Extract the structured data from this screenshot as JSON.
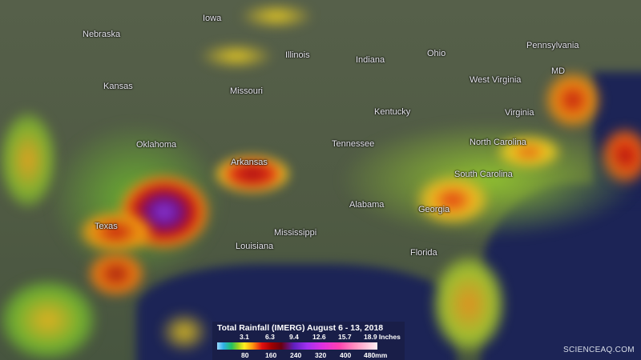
{
  "map": {
    "state_labels": [
      "Nebraska",
      "Iowa",
      "Illinois",
      "Indiana",
      "Ohio",
      "Pennsylvania",
      "Kansas",
      "Missouri",
      "West Virginia",
      "MD",
      "Kentucky",
      "Virginia",
      "Oklahoma",
      "Tennessee",
      "North Carolina",
      "Arkansas",
      "South Carolina",
      "Alabama",
      "Georgia",
      "Mississippi",
      "Texas",
      "Louisiana",
      "Florida"
    ]
  },
  "legend": {
    "title": "Total Rainfall (IMERG) August 6 - 13, 2018",
    "inch_ticks": [
      "3.1",
      "6.3",
      "9.4",
      "12.6",
      "15.7",
      "18.9 Inches"
    ],
    "mm_ticks": [
      "80",
      "160",
      "240",
      "320",
      "400",
      "480mm"
    ],
    "colors": [
      "#9ad8ff",
      "#22c060",
      "#ffef20",
      "#e01010",
      "#6a0010",
      "#a030f0",
      "#e030e0",
      "#ff90c0",
      "#fff0f4"
    ]
  },
  "watermark": "SCIENCEAQ.COM"
}
